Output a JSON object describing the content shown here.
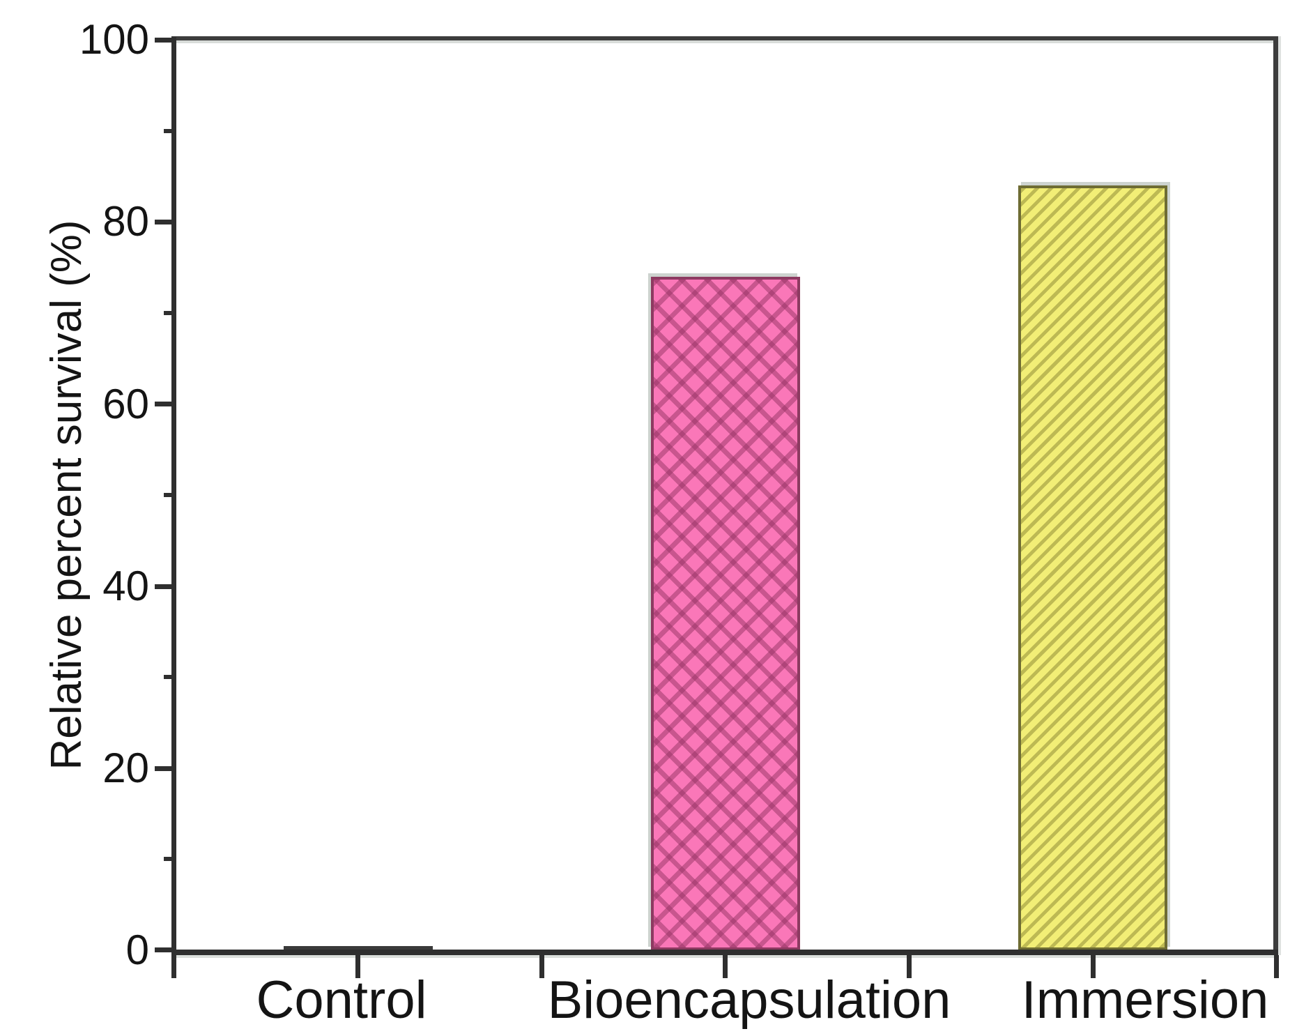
{
  "figure": {
    "background": "#ffffff"
  },
  "chart_data": {
    "type": "bar",
    "categories": [
      "Control",
      "Bioencapsulation",
      "Immersion"
    ],
    "values": [
      0,
      74,
      84
    ],
    "title": "",
    "xlabel": "",
    "ylabel": "Relative percent survival (%)",
    "ylim": [
      0,
      100
    ],
    "ytick_major_step": 20,
    "ytick_minor_step": 10,
    "ytick_labels": [
      "100",
      "80",
      "60",
      "40",
      "20",
      "0"
    ],
    "grid": "off",
    "legend": "none",
    "frame": "full box, ticks outside",
    "bar_patterns": [
      "zero-height flat line on axis",
      "pink diamond crosshatch",
      "yellow diagonal hatch"
    ],
    "colors": {
      "axis": "#2f2f2f",
      "frame": "#3d3d3d",
      "tick": "#2f2f2f",
      "text": "#141414",
      "bio_fill": "#fa77b8",
      "bio_line": "rgba(150,52,100,0.50)",
      "bio_border": "#8d3a61",
      "imm_fill": "#f2ee76",
      "imm_line": "rgba(125,120,40,0.45)",
      "imm_border": "#6e6c33",
      "zero_bar": "#3a3a3a",
      "shadow": "#cdd3cf"
    }
  }
}
